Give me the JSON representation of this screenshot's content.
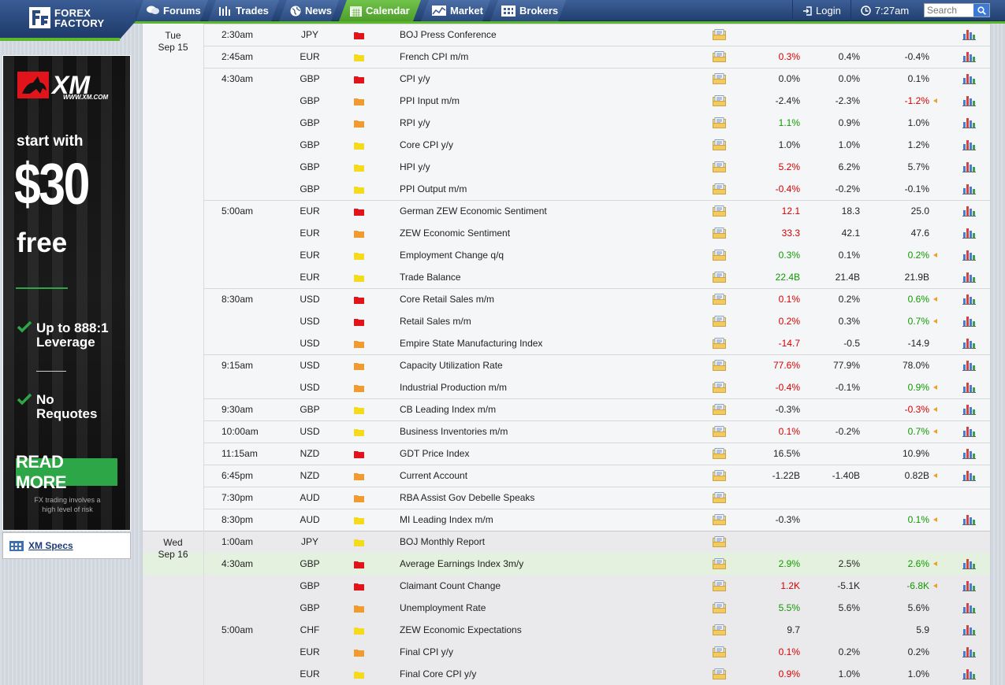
{
  "nav": {
    "brand_line1": "FOREX",
    "brand_line2": "FACTORY",
    "tabs": [
      {
        "label": "Forums"
      },
      {
        "label": "Trades"
      },
      {
        "label": "News"
      },
      {
        "label": "Calendar"
      },
      {
        "label": "Market"
      },
      {
        "label": "Brokers"
      }
    ],
    "active_tab": "Calendar",
    "login": "Login",
    "clock": "7:27am",
    "search_placeholder": "Search"
  },
  "ad": {
    "brand": "XM",
    "url": "WWW.XM.COM",
    "line1": "start with",
    "amount": "$30",
    "line2": "free",
    "feature1a": "Up to 888:1",
    "feature1b": "Leverage",
    "feature2a": "No",
    "feature2b": "Requotes",
    "cta": "READ MORE",
    "risk1": "FX trading involves a",
    "risk2": "high level of risk"
  },
  "specs_link": "XM Specs",
  "dates": [
    {
      "day": "Tue",
      "date": "Sep 15"
    },
    {
      "day": "Wed",
      "date": "Sep 16"
    }
  ],
  "colors": {
    "high": "#e0141a",
    "medium": "#f09a30",
    "low": "#f3dc1d",
    "better": "#119900",
    "worse": "#d40000",
    "accent": "#5bb82a"
  },
  "events": [
    {
      "time": "2:30am",
      "currency": "JPY",
      "impact": "high",
      "event": "BOJ Press Conference",
      "actual": "",
      "forecast": "",
      "previous": ""
    },
    {
      "time": "2:45am",
      "currency": "EUR",
      "impact": "low",
      "event": "French CPI m/m",
      "actual": "0.3%",
      "ac": "red",
      "forecast": "0.4%",
      "previous": "-0.4%"
    },
    {
      "time": "4:30am",
      "currency": "GBP",
      "impact": "high",
      "event": "CPI y/y",
      "actual": "0.0%",
      "forecast": "0.0%",
      "previous": "0.1%"
    },
    {
      "time": "",
      "currency": "GBP",
      "impact": "medium",
      "event": "PPI Input m/m",
      "actual": "-2.4%",
      "forecast": "-2.3%",
      "previous": "-1.2%",
      "pc": "red",
      "rev": true
    },
    {
      "time": "",
      "currency": "GBP",
      "impact": "medium",
      "event": "RPI y/y",
      "actual": "1.1%",
      "ac": "green",
      "forecast": "0.9%",
      "previous": "1.0%"
    },
    {
      "time": "",
      "currency": "GBP",
      "impact": "low",
      "event": "Core CPI y/y",
      "actual": "1.0%",
      "forecast": "1.0%",
      "previous": "1.2%"
    },
    {
      "time": "",
      "currency": "GBP",
      "impact": "low",
      "event": "HPI y/y",
      "actual": "5.2%",
      "ac": "red",
      "forecast": "6.2%",
      "previous": "5.7%"
    },
    {
      "time": "",
      "currency": "GBP",
      "impact": "low",
      "event": "PPI Output m/m",
      "actual": "-0.4%",
      "ac": "red",
      "forecast": "-0.2%",
      "previous": "-0.1%"
    },
    {
      "time": "5:00am",
      "currency": "EUR",
      "impact": "high",
      "event": "German ZEW Economic Sentiment",
      "actual": "12.1",
      "ac": "red",
      "forecast": "18.3",
      "previous": "25.0"
    },
    {
      "time": "",
      "currency": "EUR",
      "impact": "medium",
      "event": "ZEW Economic Sentiment",
      "actual": "33.3",
      "ac": "red",
      "forecast": "42.1",
      "previous": "47.6"
    },
    {
      "time": "",
      "currency": "EUR",
      "impact": "low",
      "event": "Employment Change q/q",
      "actual": "0.3%",
      "ac": "green",
      "forecast": "0.1%",
      "previous": "0.2%",
      "pc": "green",
      "rev": true
    },
    {
      "time": "",
      "currency": "EUR",
      "impact": "low",
      "event": "Trade Balance",
      "actual": "22.4B",
      "ac": "green",
      "forecast": "21.4B",
      "previous": "21.9B"
    },
    {
      "time": "8:30am",
      "currency": "USD",
      "impact": "high",
      "event": "Core Retail Sales m/m",
      "actual": "0.1%",
      "ac": "red",
      "forecast": "0.2%",
      "previous": "0.6%",
      "pc": "green",
      "rev": true
    },
    {
      "time": "",
      "currency": "USD",
      "impact": "high",
      "event": "Retail Sales m/m",
      "actual": "0.2%",
      "ac": "red",
      "forecast": "0.3%",
      "previous": "0.7%",
      "pc": "green",
      "rev": true
    },
    {
      "time": "",
      "currency": "USD",
      "impact": "medium",
      "event": "Empire State Manufacturing Index",
      "actual": "-14.7",
      "ac": "red",
      "forecast": "-0.5",
      "previous": "-14.9"
    },
    {
      "time": "9:15am",
      "currency": "USD",
      "impact": "medium",
      "event": "Capacity Utilization Rate",
      "actual": "77.6%",
      "ac": "red",
      "forecast": "77.9%",
      "previous": "78.0%"
    },
    {
      "time": "",
      "currency": "USD",
      "impact": "medium",
      "event": "Industrial Production m/m",
      "actual": "-0.4%",
      "ac": "red",
      "forecast": "-0.1%",
      "previous": "0.9%",
      "pc": "green",
      "rev": true
    },
    {
      "time": "9:30am",
      "currency": "GBP",
      "impact": "low",
      "event": "CB Leading Index m/m",
      "actual": "-0.3%",
      "forecast": "",
      "previous": "-0.3%",
      "pc": "red",
      "rev": true
    },
    {
      "time": "10:00am",
      "currency": "USD",
      "impact": "low",
      "event": "Business Inventories m/m",
      "actual": "0.1%",
      "ac": "red",
      "forecast": "-0.2%",
      "previous": "0.7%",
      "pc": "green",
      "rev": true
    },
    {
      "time": "11:15am",
      "currency": "NZD",
      "impact": "high",
      "event": "GDT Price Index",
      "actual": "16.5%",
      "forecast": "",
      "previous": "10.9%"
    },
    {
      "time": "6:45pm",
      "currency": "NZD",
      "impact": "medium",
      "event": "Current Account",
      "actual": "-1.22B",
      "forecast": "-1.40B",
      "previous": "0.82B",
      "rev": true
    },
    {
      "time": "7:30pm",
      "currency": "AUD",
      "impact": "medium",
      "event": "RBA Assist Gov Debelle Speaks",
      "actual": "",
      "forecast": "",
      "previous": "",
      "nograph": true
    },
    {
      "time": "8:30pm",
      "currency": "AUD",
      "impact": "low",
      "event": "MI Leading Index m/m",
      "actual": "-0.3%",
      "forecast": "",
      "previous": "0.1%",
      "pc": "green",
      "rev": true
    },
    {
      "time": "1:00am",
      "currency": "JPY",
      "impact": "low",
      "event": "BOJ Monthly Report",
      "actual": "",
      "forecast": "",
      "previous": "",
      "nograph": true,
      "wed": true
    },
    {
      "time": "4:30am",
      "currency": "GBP",
      "impact": "high",
      "event": "Average Earnings Index 3m/y",
      "actual": "2.9%",
      "ac": "green",
      "forecast": "2.5%",
      "previous": "2.6%",
      "pc": "green",
      "rev": true,
      "wed": true,
      "hl": true
    },
    {
      "time": "",
      "currency": "GBP",
      "impact": "high",
      "event": "Claimant Count Change",
      "actual": "1.2K",
      "ac": "red",
      "forecast": "-5.1K",
      "previous": "-6.8K",
      "pc": "green",
      "rev": true,
      "wed": true
    },
    {
      "time": "",
      "currency": "GBP",
      "impact": "medium",
      "event": "Unemployment Rate",
      "actual": "5.5%",
      "ac": "green",
      "forecast": "5.6%",
      "previous": "5.6%",
      "wed": true
    },
    {
      "time": "5:00am",
      "currency": "CHF",
      "impact": "low",
      "event": "ZEW Economic Expectations",
      "actual": "9.7",
      "forecast": "",
      "previous": "5.9",
      "wed": true
    },
    {
      "time": "",
      "currency": "EUR",
      "impact": "medium",
      "event": "Final CPI y/y",
      "actual": "0.1%",
      "ac": "red",
      "forecast": "0.2%",
      "previous": "0.2%",
      "wed": true
    },
    {
      "time": "",
      "currency": "EUR",
      "impact": "low",
      "event": "Final Core CPI y/y",
      "actual": "0.9%",
      "ac": "red",
      "forecast": "1.0%",
      "previous": "1.0%",
      "wed": true
    }
  ]
}
